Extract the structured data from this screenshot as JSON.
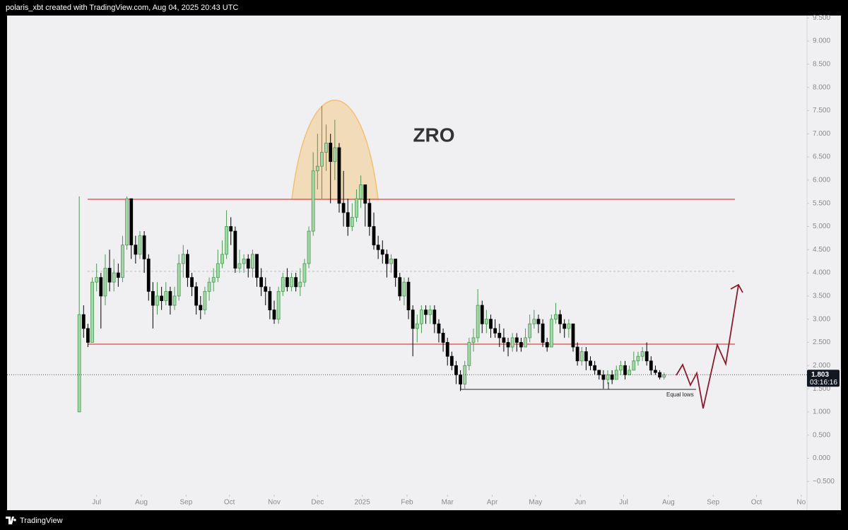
{
  "header": {
    "attribution": "polaris_xbt created with TradingView.com, Aug 04, 2025 20:43 UTC"
  },
  "footer": {
    "brand": "TradingView"
  },
  "chart_data": {
    "type": "candlestick",
    "title": "ZRO",
    "annotation": "Equal lows",
    "last_price": 1.803,
    "countdown": "03:16:16",
    "up_color": "#a5d6a7",
    "up_border": "#4c9a55",
    "down_color": "#000000",
    "xlim": [
      -62,
      492
    ],
    "xticks": [
      {
        "value": 0,
        "label": "Jul"
      },
      {
        "value": 31,
        "label": "Aug"
      },
      {
        "value": 62,
        "label": "Sep"
      },
      {
        "value": 92,
        "label": "Oct"
      },
      {
        "value": 123,
        "label": "Nov"
      },
      {
        "value": 153,
        "label": "Dec"
      },
      {
        "value": 184,
        "label": "2025"
      },
      {
        "value": 215,
        "label": "Feb"
      },
      {
        "value": 243,
        "label": "Mar"
      },
      {
        "value": 274,
        "label": "Apr"
      },
      {
        "value": 304,
        "label": "May"
      },
      {
        "value": 335,
        "label": "Jun"
      },
      {
        "value": 365,
        "label": "Jul"
      },
      {
        "value": 396,
        "label": "Aug"
      },
      {
        "value": 427,
        "label": "Sep"
      },
      {
        "value": 457,
        "label": "Oct"
      },
      {
        "value": 488,
        "label": "No"
      }
    ],
    "ylim": [
      -1.12,
      9.55
    ],
    "yticks": [
      {
        "value": 9.5,
        "label": "9.500"
      },
      {
        "value": 9,
        "label": "9.000"
      },
      {
        "value": 8.5,
        "label": "8.500"
      },
      {
        "value": 8,
        "label": "8.000"
      },
      {
        "value": 7.5,
        "label": "7.500"
      },
      {
        "value": 7,
        "label": "7.000"
      },
      {
        "value": 6.5,
        "label": "6.500"
      },
      {
        "value": 6,
        "label": "6.000"
      },
      {
        "value": 5.5,
        "label": "5.500"
      },
      {
        "value": 5,
        "label": "5.000"
      },
      {
        "value": 4.5,
        "label": "4.500"
      },
      {
        "value": 4,
        "label": "4.000"
      },
      {
        "value": 3.5,
        "label": "3.500"
      },
      {
        "value": 3,
        "label": "3.000"
      },
      {
        "value": 2.5,
        "label": "2.500"
      },
      {
        "value": 2,
        "label": "2.000"
      },
      {
        "value": 1.5,
        "label": "1.500"
      },
      {
        "value": 1,
        "label": "1.000"
      },
      {
        "value": 0.5,
        "label": "0.500"
      },
      {
        "value": 0,
        "label": "0.000"
      },
      {
        "value": -0.5,
        "label": "−0.500"
      }
    ],
    "x": [
      -12,
      -9,
      -6,
      -3,
      0,
      3,
      6,
      9,
      12,
      15,
      18,
      21,
      24,
      27,
      30,
      33,
      36,
      39,
      42,
      45,
      48,
      51,
      54,
      57,
      60,
      63,
      66,
      69,
      72,
      75,
      78,
      81,
      84,
      87,
      90,
      93,
      96,
      99,
      102,
      105,
      108,
      111,
      114,
      117,
      120,
      123,
      126,
      129,
      132,
      135,
      138,
      141,
      144,
      147,
      150,
      153,
      156,
      159,
      162,
      165,
      168,
      171,
      174,
      177,
      180,
      183,
      186,
      189,
      192,
      195,
      198,
      201,
      204,
      207,
      210,
      213,
      216,
      219,
      222,
      225,
      228,
      231,
      234,
      237,
      240,
      243,
      246,
      249,
      252,
      255,
      258,
      261,
      264,
      267,
      270,
      273,
      276,
      279,
      282,
      285,
      288,
      291,
      294,
      297,
      300,
      303,
      306,
      309,
      312,
      315,
      318,
      321,
      324,
      327,
      330,
      333,
      336,
      339,
      342,
      345,
      348,
      351,
      354,
      357,
      360,
      363,
      366,
      369,
      372,
      375,
      378,
      381,
      384,
      387,
      390,
      393
    ],
    "open": [
      1.0,
      3.1,
      2.8,
      2.5,
      3.8,
      3.9,
      3.5,
      4.1,
      3.8,
      4.0,
      3.9,
      4.6,
      5.6,
      4.6,
      4.4,
      4.8,
      4.3,
      3.6,
      3.3,
      3.5,
      3.4,
      3.6,
      3.3,
      3.5,
      4.2,
      4.4,
      3.9,
      3.7,
      3.3,
      3.2,
      3.6,
      3.8,
      3.9,
      4.2,
      4.4,
      5.0,
      4.9,
      4.1,
      4.2,
      4.3,
      4.1,
      4.4,
      3.9,
      3.7,
      3.6,
      3.2,
      3.0,
      3.6,
      3.9,
      3.7,
      3.9,
      3.7,
      3.8,
      4.2,
      4.9,
      6.2,
      6.3,
      6.6,
      6.8,
      6.4,
      6.7,
      5.5,
      5.3,
      5.0,
      5.2,
      5.6,
      5.9,
      5.5,
      5.0,
      4.6,
      4.5,
      4.4,
      4.2,
      4.3,
      3.9,
      3.5,
      3.8,
      3.2,
      2.8,
      2.9,
      3.2,
      3.1,
      3.2,
      2.9,
      2.7,
      2.5,
      2.2,
      2.0,
      1.8,
      1.6,
      2.0,
      2.5,
      2.6,
      3.3,
      2.9,
      3.0,
      2.8,
      2.7,
      2.6,
      2.5,
      2.4,
      2.6,
      2.5,
      2.4,
      2.6,
      2.9,
      3.0,
      2.9,
      2.5,
      2.4,
      3.0,
      3.1,
      2.9,
      2.8,
      2.9,
      2.4,
      2.1,
      2.3,
      2.1,
      2.0,
      1.9,
      1.8,
      1.7,
      1.8,
      1.7,
      1.9,
      2.0,
      1.8,
      1.9,
      2.1,
      2.2,
      2.3,
      2.1,
      1.9,
      1.85,
      1.75
    ],
    "high": [
      5.65,
      3.3,
      2.9,
      3.9,
      4.2,
      4.0,
      4.4,
      4.5,
      4.3,
      4.2,
      4.8,
      5.65,
      5.6,
      4.8,
      4.9,
      4.9,
      4.4,
      3.8,
      3.8,
      3.7,
      3.8,
      3.7,
      3.7,
      4.4,
      4.6,
      4.5,
      4.0,
      3.8,
      3.5,
      3.7,
      3.9,
      4.1,
      4.5,
      4.7,
      5.35,
      5.2,
      5.0,
      4.5,
      4.4,
      4.4,
      4.5,
      4.4,
      4.1,
      3.9,
      3.7,
      3.4,
      3.7,
      4.0,
      4.1,
      4.0,
      4.0,
      4.1,
      4.3,
      5.0,
      6.6,
      7.0,
      7.6,
      7.2,
      7.0,
      7.3,
      6.8,
      6.2,
      5.6,
      5.5,
      5.8,
      6.1,
      5.9,
      5.6,
      5.3,
      4.8,
      4.7,
      4.5,
      4.4,
      4.3,
      4.0,
      3.9,
      3.9,
      3.3,
      3.1,
      3.3,
      3.3,
      3.3,
      3.3,
      3.0,
      2.8,
      2.6,
      2.3,
      2.1,
      1.9,
      2.1,
      2.6,
      2.8,
      3.65,
      3.4,
      3.2,
      3.1,
      3.0,
      2.9,
      2.8,
      2.6,
      2.7,
      2.7,
      2.6,
      2.8,
      3.1,
      3.2,
      3.1,
      3.0,
      2.6,
      3.1,
      3.35,
      3.2,
      3.0,
      3.0,
      2.9,
      2.5,
      2.4,
      2.4,
      2.2,
      2.1,
      1.9,
      1.9,
      1.9,
      1.9,
      2.0,
      2.1,
      2.1,
      2.0,
      2.3,
      2.3,
      2.4,
      2.5,
      2.2,
      2.0,
      1.9,
      1.85
    ],
    "low": [
      1.0,
      2.6,
      2.4,
      2.5,
      3.6,
      2.8,
      3.3,
      3.6,
      3.6,
      3.7,
      3.8,
      4.5,
      4.3,
      4.2,
      4.3,
      4.0,
      3.4,
      2.8,
      3.1,
      3.2,
      3.3,
      3.1,
      3.2,
      3.4,
      3.9,
      3.7,
      3.5,
      3.1,
      3.0,
      3.1,
      3.4,
      3.6,
      3.8,
      4.1,
      4.3,
      4.6,
      4.0,
      4.0,
      4.0,
      3.9,
      3.9,
      3.7,
      3.5,
      3.3,
      3.0,
      2.9,
      2.9,
      3.5,
      3.6,
      3.6,
      3.6,
      3.5,
      3.7,
      4.1,
      4.8,
      5.8,
      5.6,
      6.2,
      5.5,
      6.0,
      5.3,
      5.0,
      4.8,
      4.9,
      5.1,
      5.4,
      5.0,
      4.8,
      4.5,
      4.3,
      4.2,
      3.9,
      4.0,
      3.7,
      3.4,
      3.3,
      3.0,
      2.2,
      2.5,
      2.7,
      2.9,
      2.9,
      2.7,
      2.5,
      2.3,
      2.0,
      1.9,
      1.6,
      1.45,
      1.5,
      1.9,
      2.3,
      2.5,
      2.7,
      2.7,
      2.6,
      2.6,
      2.4,
      2.3,
      2.2,
      2.3,
      2.3,
      2.3,
      2.4,
      2.5,
      2.8,
      2.7,
      2.4,
      2.3,
      2.4,
      2.9,
      2.7,
      2.6,
      2.6,
      2.3,
      2.0,
      2.0,
      1.9,
      1.9,
      1.8,
      1.7,
      1.5,
      1.6,
      1.6,
      1.7,
      1.8,
      1.7,
      1.8,
      1.9,
      2.0,
      2.1,
      2.0,
      1.8,
      1.8,
      1.7,
      1.7
    ],
    "close": [
      3.1,
      2.8,
      2.5,
      3.8,
      3.9,
      3.5,
      4.1,
      3.8,
      4.0,
      3.9,
      4.6,
      5.6,
      4.6,
      4.4,
      4.8,
      4.3,
      3.6,
      3.3,
      3.5,
      3.4,
      3.6,
      3.3,
      3.5,
      4.2,
      4.4,
      3.9,
      3.7,
      3.3,
      3.2,
      3.6,
      3.8,
      3.9,
      4.2,
      4.4,
      5.0,
      4.9,
      4.1,
      4.2,
      4.3,
      4.1,
      4.4,
      3.9,
      3.7,
      3.6,
      3.2,
      3.0,
      3.6,
      3.9,
      3.7,
      3.9,
      3.7,
      3.8,
      4.2,
      4.9,
      6.2,
      6.3,
      6.6,
      6.8,
      6.4,
      6.7,
      5.5,
      5.3,
      5.0,
      5.2,
      5.6,
      5.9,
      5.5,
      5.0,
      4.6,
      4.5,
      4.4,
      4.2,
      4.3,
      3.9,
      3.5,
      3.8,
      3.2,
      2.8,
      2.9,
      3.2,
      3.1,
      3.2,
      2.9,
      2.7,
      2.5,
      2.2,
      2.0,
      1.8,
      1.6,
      2.0,
      2.5,
      2.6,
      3.3,
      2.9,
      3.0,
      2.8,
      2.7,
      2.6,
      2.5,
      2.4,
      2.6,
      2.5,
      2.4,
      2.6,
      2.9,
      3.0,
      2.9,
      2.5,
      2.4,
      3.0,
      3.1,
      2.9,
      2.8,
      2.9,
      2.4,
      2.1,
      2.3,
      2.1,
      2.0,
      1.9,
      1.8,
      1.7,
      1.8,
      1.7,
      1.9,
      2.0,
      1.8,
      1.9,
      2.1,
      2.2,
      2.3,
      2.1,
      1.9,
      1.85,
      1.75,
      1.8
    ]
  }
}
